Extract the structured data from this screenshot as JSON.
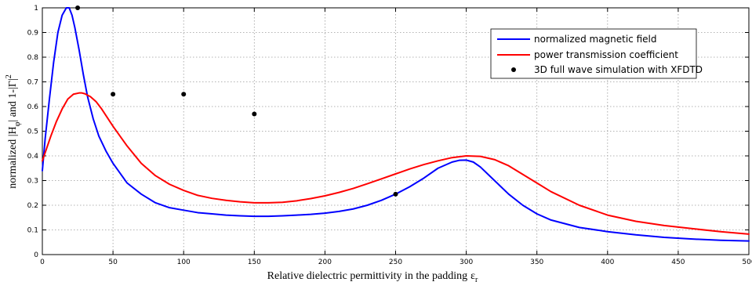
{
  "chart_data": {
    "type": "line",
    "title": "",
    "xlabel": "Relative dielectric permittivity in the padding",
    "xlabel_symbol": "ε",
    "xlabel_sub": "r",
    "ylabel_parts": {
      "pre": "normalized |H",
      "sub": "φ",
      "mid": "| and 1-|Γ|",
      "sup": "2"
    },
    "xlim": [
      0,
      500
    ],
    "ylim": [
      0,
      1
    ],
    "xticks": [
      0,
      50,
      100,
      150,
      200,
      250,
      300,
      350,
      400,
      450,
      500
    ],
    "yticks": [
      0,
      0.1,
      0.2,
      0.3,
      0.4,
      0.5,
      0.6,
      0.7,
      0.8,
      0.9,
      1
    ],
    "grid": true,
    "legend_position": "top-right",
    "series": [
      {
        "name": "normalized magnetic field",
        "color": "#0000ff",
        "style": "line",
        "x": [
          0,
          2,
          5,
          8,
          11,
          14,
          17,
          19,
          21,
          23,
          26,
          29,
          32,
          36,
          40,
          45,
          50,
          55,
          60,
          70,
          80,
          90,
          100,
          110,
          120,
          130,
          140,
          150,
          160,
          170,
          180,
          190,
          200,
          210,
          220,
          230,
          240,
          250,
          260,
          270,
          280,
          290,
          295,
          300,
          305,
          310,
          320,
          330,
          340,
          350,
          360,
          380,
          400,
          420,
          440,
          460,
          480,
          500
        ],
        "y": [
          0.34,
          0.47,
          0.63,
          0.78,
          0.9,
          0.97,
          1.0,
          1.0,
          0.97,
          0.92,
          0.83,
          0.73,
          0.64,
          0.55,
          0.48,
          0.42,
          0.37,
          0.33,
          0.29,
          0.245,
          0.21,
          0.19,
          0.18,
          0.17,
          0.165,
          0.16,
          0.157,
          0.155,
          0.155,
          0.157,
          0.16,
          0.163,
          0.168,
          0.175,
          0.185,
          0.2,
          0.22,
          0.245,
          0.275,
          0.31,
          0.35,
          0.375,
          0.382,
          0.383,
          0.375,
          0.355,
          0.3,
          0.245,
          0.2,
          0.165,
          0.14,
          0.11,
          0.093,
          0.08,
          0.07,
          0.063,
          0.058,
          0.055
        ]
      },
      {
        "name": "power transmission coefficient",
        "color": "#ff0000",
        "style": "line",
        "x": [
          0,
          3,
          6,
          10,
          14,
          18,
          22,
          26,
          28,
          30,
          34,
          38,
          42,
          46,
          50,
          55,
          60,
          70,
          80,
          90,
          100,
          110,
          120,
          130,
          140,
          150,
          160,
          170,
          180,
          190,
          200,
          210,
          220,
          230,
          240,
          250,
          260,
          270,
          280,
          290,
          300,
          310,
          320,
          330,
          340,
          350,
          360,
          380,
          400,
          420,
          440,
          460,
          480,
          500
        ],
        "y": [
          0.38,
          0.43,
          0.48,
          0.54,
          0.59,
          0.63,
          0.65,
          0.655,
          0.655,
          0.652,
          0.64,
          0.62,
          0.59,
          0.555,
          0.52,
          0.48,
          0.44,
          0.37,
          0.32,
          0.285,
          0.26,
          0.24,
          0.228,
          0.22,
          0.214,
          0.21,
          0.21,
          0.212,
          0.218,
          0.227,
          0.238,
          0.252,
          0.268,
          0.287,
          0.307,
          0.327,
          0.347,
          0.365,
          0.38,
          0.393,
          0.4,
          0.398,
          0.385,
          0.36,
          0.325,
          0.29,
          0.255,
          0.2,
          0.16,
          0.135,
          0.118,
          0.105,
          0.093,
          0.083
        ]
      },
      {
        "name": "3D full wave simulation with XFDTD",
        "color": "#000000",
        "style": "marker",
        "x": [
          25,
          50,
          100,
          150,
          250
        ],
        "y": [
          1.0,
          0.65,
          0.65,
          0.57,
          0.245
        ]
      }
    ]
  }
}
